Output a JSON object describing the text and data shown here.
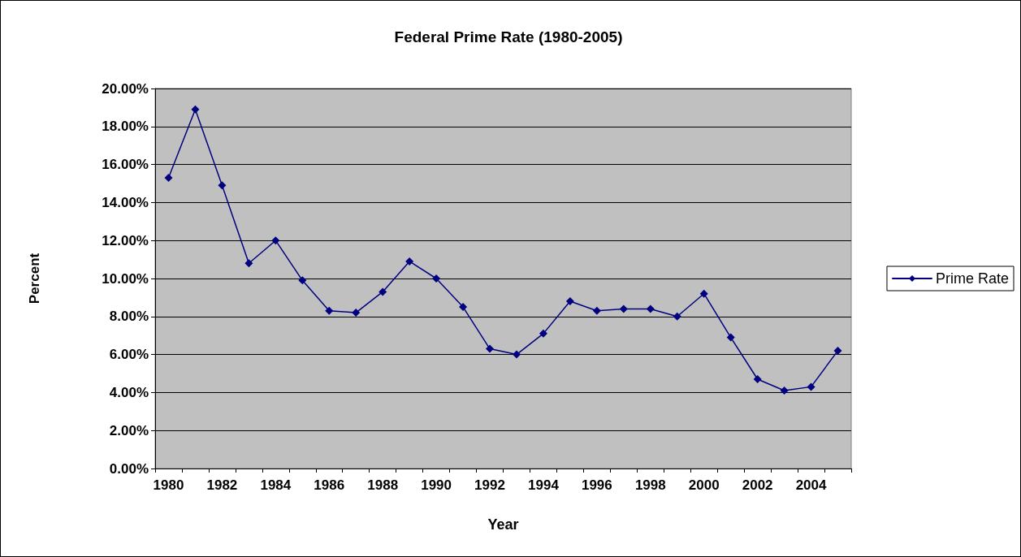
{
  "chart_data": {
    "type": "line",
    "title": "Federal Prime Rate (1980-2005)",
    "xlabel": "Year",
    "ylabel": "Percent",
    "categories": [
      "1980",
      null,
      "1982",
      null,
      "1984",
      null,
      "1986",
      null,
      "1988",
      null,
      "1990",
      null,
      "1992",
      null,
      "1994",
      null,
      "1996",
      null,
      "1998",
      null,
      "2000",
      null,
      "2002",
      null,
      "2004",
      null
    ],
    "series": [
      {
        "name": "Prime Rate",
        "color": "#000080",
        "values": [
          15.3,
          18.9,
          14.9,
          10.8,
          12.0,
          9.9,
          8.3,
          8.2,
          9.3,
          10.9,
          10.0,
          8.5,
          6.3,
          6.0,
          7.1,
          8.8,
          8.3,
          8.4,
          8.4,
          8.0,
          9.2,
          6.9,
          4.7,
          4.1,
          4.3,
          6.2
        ]
      }
    ],
    "ylim": [
      0,
      20
    ],
    "yticks": [
      {
        "value": 0,
        "label": "0.00%"
      },
      {
        "value": 2,
        "label": "2.00%"
      },
      {
        "value": 4,
        "label": "4.00%"
      },
      {
        "value": 6,
        "label": "6.00%"
      },
      {
        "value": 8,
        "label": "8.00%"
      },
      {
        "value": 10,
        "label": "10.00%"
      },
      {
        "value": 12,
        "label": "12.00%"
      },
      {
        "value": 14,
        "label": "14.00%"
      },
      {
        "value": 16,
        "label": "16.00%"
      },
      {
        "value": 18,
        "label": "18.00%"
      },
      {
        "value": 20,
        "label": "20.00%"
      }
    ],
    "grid": "y",
    "legend": "right",
    "marker": "diamond",
    "line_style": "solid"
  }
}
